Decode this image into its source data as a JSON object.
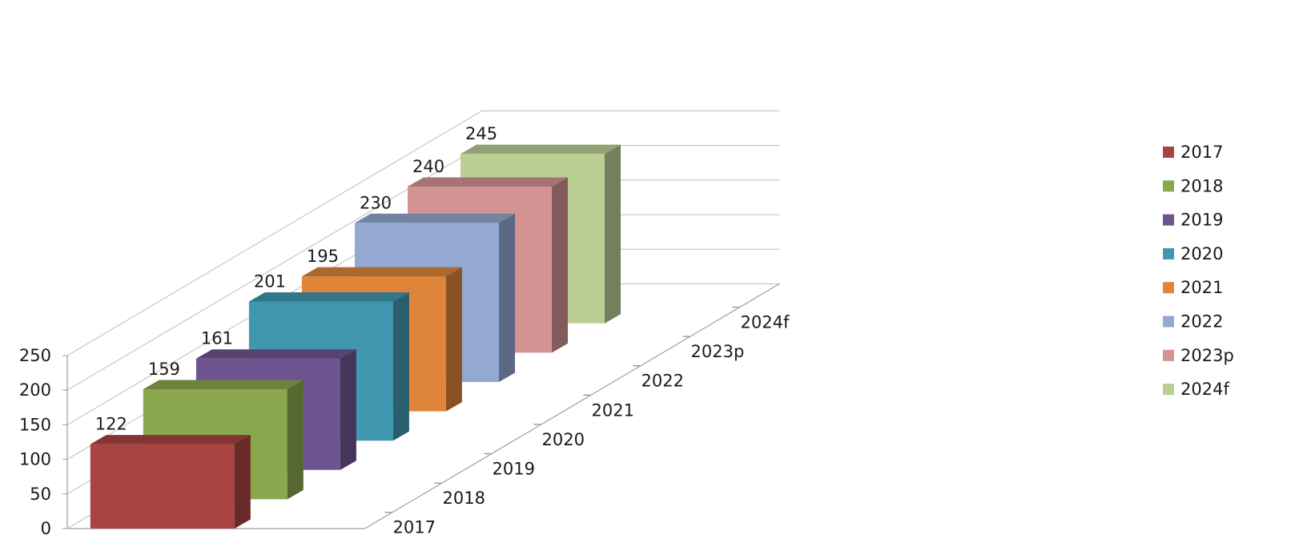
{
  "chart_data": {
    "type": "bar",
    "variant": "3d-column",
    "title": "",
    "xlabel": "",
    "ylabel": "",
    "categories": [
      "2017",
      "2018",
      "2019",
      "2020",
      "2021",
      "2022",
      "2023p",
      "2024f"
    ],
    "values": [
      122,
      159,
      161,
      201,
      195,
      230,
      240,
      245
    ],
    "value_labels": [
      "122",
      "159",
      "161",
      "201",
      "195",
      "230",
      "240",
      "245"
    ],
    "colors": [
      "#A94442",
      "#8AA74E",
      "#6F5590",
      "#4097AF",
      "#DE853A",
      "#93A9D1",
      "#D49393",
      "#BBCF95"
    ],
    "ylim": [
      0,
      250
    ],
    "yticks": [
      0,
      50,
      100,
      150,
      200,
      250
    ],
    "ytick_labels": [
      "0",
      "50",
      "100",
      "150",
      "200",
      "250"
    ],
    "grid": true,
    "legend": {
      "position": "right",
      "entries": [
        "2017",
        "2018",
        "2019",
        "2020",
        "2021",
        "2022",
        "2023p",
        "2024f"
      ]
    }
  }
}
